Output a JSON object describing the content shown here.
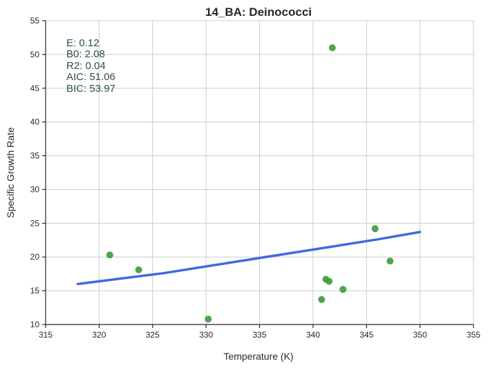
{
  "chart_data": {
    "type": "scatter",
    "title": "14_BA: Deinococci",
    "xlabel": "Temperature (K)",
    "ylabel": "Specific Growth Rate",
    "xlim": [
      315,
      355
    ],
    "ylim": [
      10,
      55
    ],
    "xticks": [
      315,
      320,
      325,
      330,
      335,
      340,
      345,
      350,
      355
    ],
    "yticks": [
      10,
      15,
      20,
      25,
      30,
      35,
      40,
      45,
      50,
      55
    ],
    "grid": true,
    "point_color": "#3a9a3a",
    "line_color": "#4169e1",
    "points": [
      {
        "x": 321.0,
        "y": 20.3
      },
      {
        "x": 323.7,
        "y": 18.1
      },
      {
        "x": 330.2,
        "y": 10.8
      },
      {
        "x": 340.8,
        "y": 13.7
      },
      {
        "x": 341.2,
        "y": 16.7
      },
      {
        "x": 341.5,
        "y": 16.4
      },
      {
        "x": 341.8,
        "y": 51.0
      },
      {
        "x": 342.8,
        "y": 15.2
      },
      {
        "x": 345.8,
        "y": 24.2
      },
      {
        "x": 347.2,
        "y": 19.4
      }
    ],
    "fit_line": [
      {
        "x": 318.0,
        "y": 16.0
      },
      {
        "x": 322.0,
        "y": 16.8
      },
      {
        "x": 326.0,
        "y": 17.6
      },
      {
        "x": 330.0,
        "y": 18.6
      },
      {
        "x": 334.0,
        "y": 19.6
      },
      {
        "x": 338.0,
        "y": 20.6
      },
      {
        "x": 342.0,
        "y": 21.6
      },
      {
        "x": 346.0,
        "y": 22.6
      },
      {
        "x": 350.0,
        "y": 23.7
      }
    ],
    "annotations": [
      "E:  0.12",
      "B0:  2.08",
      "R2:  0.04",
      "AIC: 51.06",
      "BIC: 53.97"
    ]
  }
}
